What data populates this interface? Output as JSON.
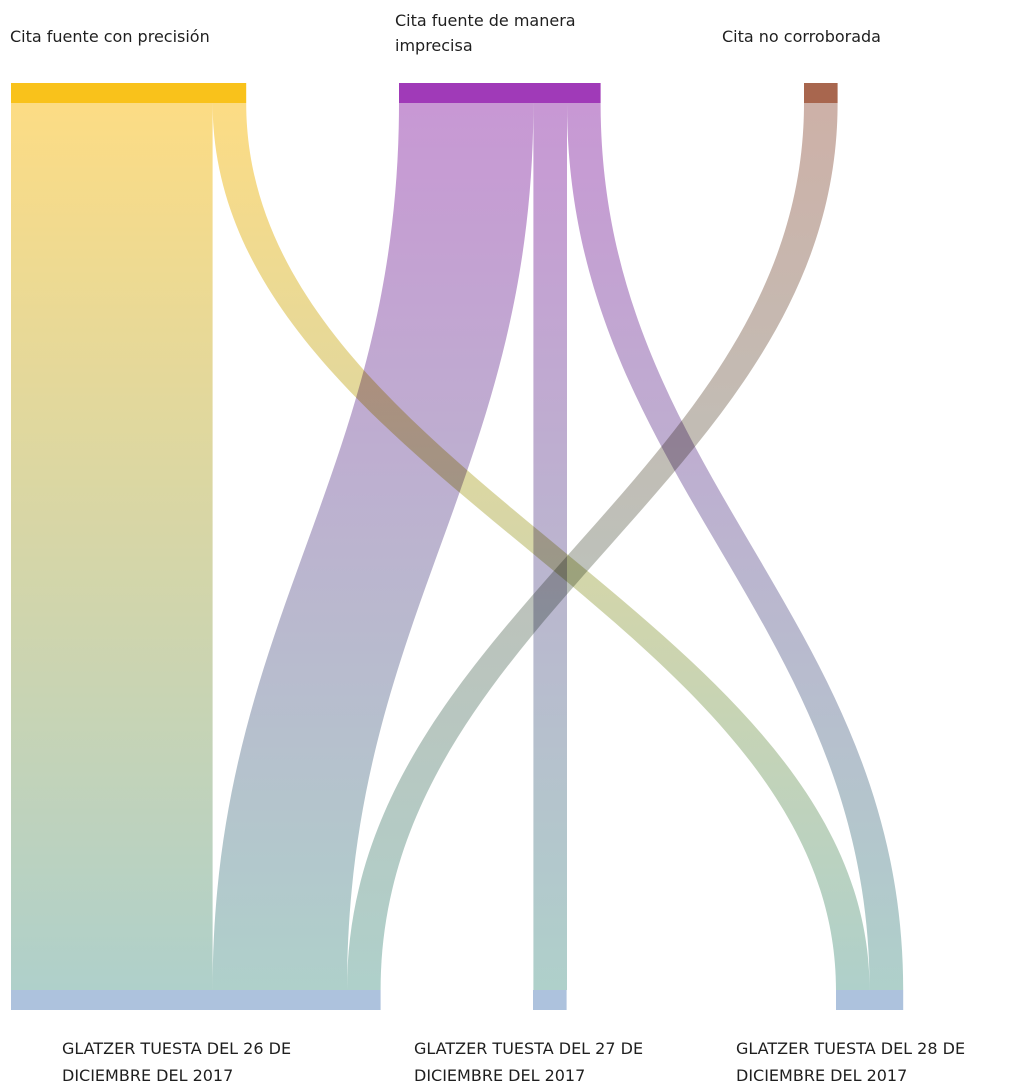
{
  "chart_data": {
    "type": "sankey",
    "sources": [
      {
        "name": "Cita fuente con precisión",
        "color": "#f9c21b"
      },
      {
        "name": "Cita fuente de manera\nimprecisa",
        "color": "#a03ab8"
      },
      {
        "name": "Cita no corroborada",
        "color": "#a8664e"
      }
    ],
    "targets": [
      {
        "name": "GLATZER TUESTA DEL 26 DE\nDICIEMBRE DEL 2017",
        "color": "#adc2dd"
      },
      {
        "name": "GLATZER TUESTA DEL 27 DE\nDICIEMBRE DEL 2017",
        "color": "#adc2dd"
      },
      {
        "name": "GLATZER TUESTA DEL 28 DE\nDICIEMBRE DEL 2017",
        "color": "#adc2dd"
      }
    ],
    "links": [
      {
        "source": 0,
        "target": 0,
        "value": 6
      },
      {
        "source": 0,
        "target": 2,
        "value": 1
      },
      {
        "source": 1,
        "target": 0,
        "value": 4
      },
      {
        "source": 1,
        "target": 1,
        "value": 1
      },
      {
        "source": 1,
        "target": 2,
        "value": 1
      },
      {
        "source": 2,
        "target": 0,
        "value": 1
      }
    ],
    "colors": {
      "flow_end": "#a8ccc6",
      "source_fill": {
        "0": "#fcd97a",
        "1": "#c38fd0",
        "2": "#c9aaa0"
      }
    }
  }
}
